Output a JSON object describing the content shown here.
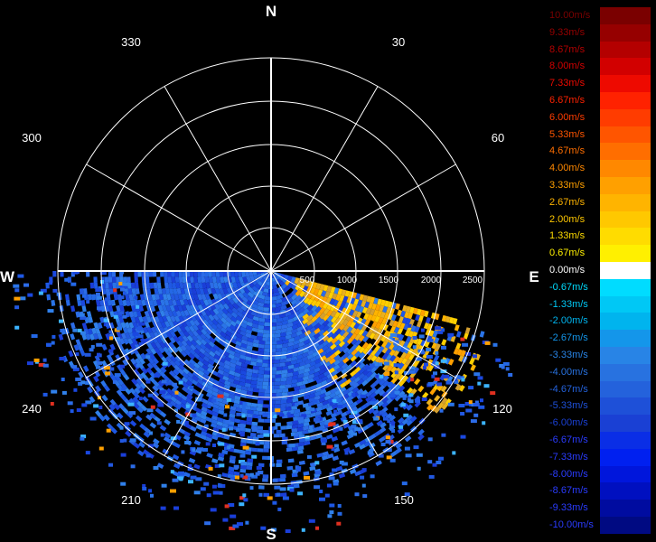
{
  "chart_data": {
    "type": "polar-radar",
    "cardinals": {
      "north": "N",
      "east": "E",
      "south": "S",
      "west": "W"
    },
    "azimuth_labels": [
      "30",
      "60",
      "120",
      "150",
      "210",
      "240",
      "300",
      "330"
    ],
    "range_labels": [
      "500",
      "1000",
      "1500",
      "2000",
      "2500"
    ],
    "colorbar": {
      "labels": [
        "10.00m/s",
        "9.33m/s",
        "8.67m/s",
        "8.00m/s",
        "7.33m/s",
        "6.67m/s",
        "6.00m/s",
        "5.33m/s",
        "4.67m/s",
        "4.00m/s",
        "3.33m/s",
        "2.67m/s",
        "2.00m/s",
        "1.33m/s",
        "0.67m/s",
        "0.00m/s",
        "-0.67m/s",
        "-1.33m/s",
        "-2.00m/s",
        "-2.67m/s",
        "-3.33m/s",
        "-4.00m/s",
        "-4.67m/s",
        "-5.33m/s",
        "-6.00m/s",
        "-6.67m/s",
        "-7.33m/s",
        "-8.00m/s",
        "-8.67m/s",
        "-9.33m/s",
        "-10.00m/s"
      ],
      "colors": [
        "#7a0000",
        "#960000",
        "#b40000",
        "#d20000",
        "#ee0a00",
        "#ff2200",
        "#ff3c00",
        "#ff5500",
        "#ff6e00",
        "#ff8800",
        "#ffa000",
        "#ffb400",
        "#ffc800",
        "#ffdc00",
        "#fff000",
        "#ffffff",
        "#00dcff",
        "#00c8f5",
        "#00b4ee",
        "#1496ea",
        "#2884e6",
        "#2872e0",
        "#2462dc",
        "#1e50d8",
        "#1a40d4",
        "#0a2ee6",
        "#0020f0",
        "#0016dc",
        "#0010c0",
        "#000ca0",
        "#000a82"
      ]
    }
  }
}
